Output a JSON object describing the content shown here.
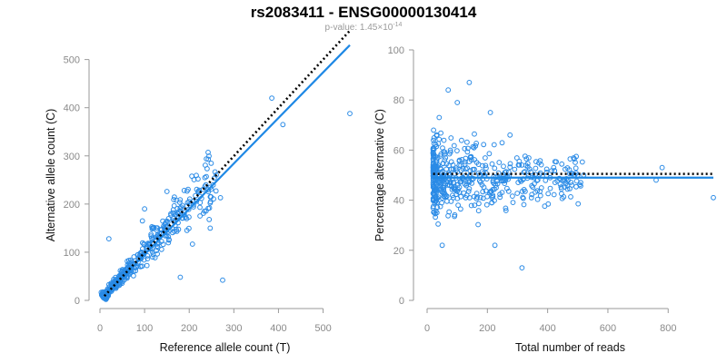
{
  "title": "rs2083411 - ENSG00000130414",
  "subtitle": {
    "prefix": "p-value: 1.45×10",
    "exponent": "-14"
  },
  "colors": {
    "points": "#2b8be6",
    "fit_line": "#1e88e5",
    "reference_line": "#000000"
  },
  "chart_data": [
    {
      "type": "scatter",
      "xlabel": "Reference allele count (T)",
      "ylabel": "Alternative allele count (C)",
      "xlim": [
        0,
        560
      ],
      "ylim": [
        0,
        520
      ],
      "xticks": [
        0,
        100,
        200,
        300,
        400,
        500
      ],
      "yticks": [
        0,
        100,
        200,
        300,
        400,
        500
      ],
      "grid": false,
      "reference_line": {
        "style": "dotted",
        "points": [
          [
            10,
            9
          ],
          [
            560,
            560
          ]
        ]
      },
      "fit_line": {
        "style": "solid",
        "points": [
          [
            10,
            10
          ],
          [
            560,
            530
          ]
        ]
      },
      "outliers": [
        [
          385,
          420
        ],
        [
          410,
          365
        ],
        [
          560,
          388
        ],
        [
          275,
          42
        ],
        [
          180,
          48
        ],
        [
          20,
          128
        ],
        [
          235,
          255
        ],
        [
          247,
          150
        ],
        [
          270,
          213
        ],
        [
          200,
          205
        ],
        [
          220,
          225
        ],
        [
          150,
          226
        ],
        [
          95,
          165
        ],
        [
          100,
          190
        ]
      ]
    },
    {
      "type": "scatter",
      "xlabel": "Total number of reads",
      "ylabel": "Percentage alternative (C)",
      "xlim": [
        0,
        950
      ],
      "ylim": [
        0,
        100
      ],
      "xticks": [
        0,
        200,
        400,
        600,
        800
      ],
      "yticks": [
        0,
        20,
        40,
        60,
        80,
        100
      ],
      "grid": false,
      "reference_line": {
        "style": "dotted",
        "value": 50.5
      },
      "fit_line": {
        "style": "solid",
        "value": 49
      },
      "outliers": [
        [
          140,
          87
        ],
        [
          70,
          84
        ],
        [
          100,
          79
        ],
        [
          40,
          73
        ],
        [
          210,
          75
        ],
        [
          50,
          22
        ],
        [
          225,
          22
        ],
        [
          315,
          13
        ],
        [
          275,
          66
        ],
        [
          950,
          41
        ],
        [
          780,
          53
        ],
        [
          760,
          48
        ],
        [
          480,
          46
        ],
        [
          420,
          53
        ],
        [
          500,
          50
        ]
      ]
    }
  ]
}
